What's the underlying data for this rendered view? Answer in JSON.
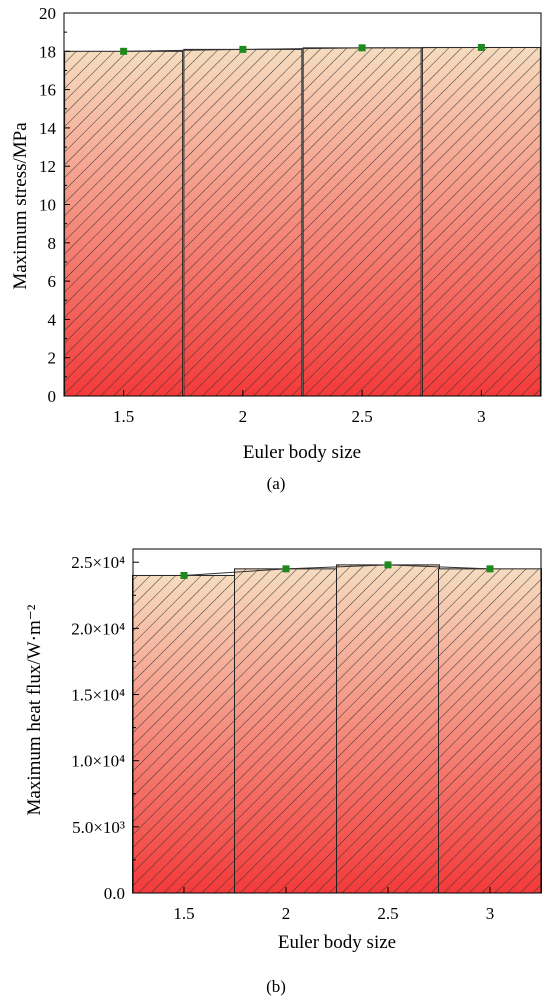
{
  "chart_data": [
    {
      "type": "bar",
      "panel_label": "(a)",
      "categories": [
        "1.5",
        "2",
        "2.5",
        "3"
      ],
      "values": [
        18.0,
        18.1,
        18.18,
        18.2
      ],
      "marker_values": [
        18.0,
        18.1,
        18.18,
        18.2
      ],
      "xlabel": "Euler body size",
      "ylabel": "Maximum stress/MPa",
      "ylim": [
        0,
        20
      ],
      "yticks": [
        0,
        2,
        4,
        6,
        8,
        10,
        12,
        14,
        16,
        18,
        20
      ],
      "ytick_labels": [
        "0",
        "2",
        "4",
        "6",
        "8",
        "10",
        "12",
        "14",
        "16",
        "18",
        "20"
      ],
      "grid": false,
      "colors": {
        "bar_top": "#f6dcbf",
        "bar_bottom": "#f43a3a",
        "hatch": "#333333",
        "marker": "#1d8a1d",
        "line": "#333333"
      }
    },
    {
      "type": "bar",
      "panel_label": "(b)",
      "categories": [
        "1.5",
        "2",
        "2.5",
        "3"
      ],
      "values": [
        24000,
        24500,
        24800,
        24500
      ],
      "marker_values": [
        24000,
        24500,
        24800,
        24500
      ],
      "xlabel": "Euler body size",
      "ylabel": "Maximum heat flux/W·m⁻²",
      "ylim": [
        0,
        26000
      ],
      "yticks": [
        0,
        5000,
        10000,
        15000,
        20000,
        25000
      ],
      "ytick_labels": [
        "0.0",
        "5.0×10³",
        "1.0×10⁴",
        "1.5×10⁴",
        "2.0×10⁴",
        "2.5×10⁴"
      ],
      "grid": false,
      "colors": {
        "bar_top": "#f6dcbf",
        "bar_bottom": "#f43a3a",
        "hatch": "#333333",
        "marker": "#1d8a1d",
        "line": "#333333"
      }
    }
  ]
}
